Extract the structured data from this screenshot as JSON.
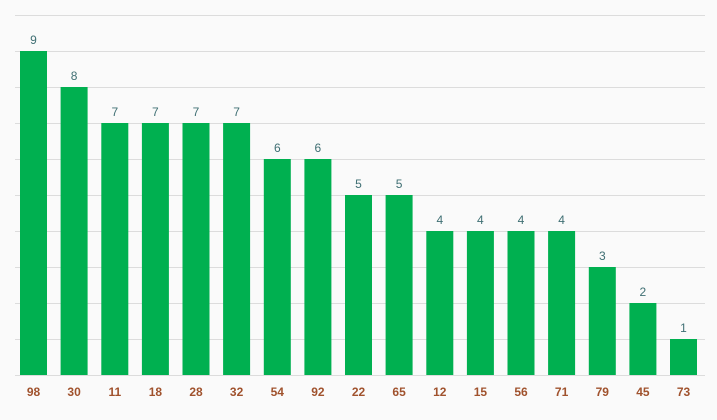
{
  "chart_data": {
    "type": "bar",
    "categories": [
      "98",
      "30",
      "11",
      "18",
      "28",
      "32",
      "54",
      "92",
      "22",
      "65",
      "12",
      "15",
      "56",
      "71",
      "79",
      "45",
      "73"
    ],
    "values": [
      9,
      8,
      7,
      7,
      7,
      7,
      6,
      6,
      5,
      5,
      4,
      4,
      4,
      4,
      3,
      2,
      1
    ],
    "title": "",
    "xlabel": "",
    "ylabel": "",
    "ylim": [
      0,
      10
    ],
    "grid": true,
    "legend": "none",
    "colors": {
      "bar": "#00b050",
      "value_label": "#3f6f73",
      "tick_label": "#a0522d",
      "grid": "#dcdcdc"
    }
  }
}
